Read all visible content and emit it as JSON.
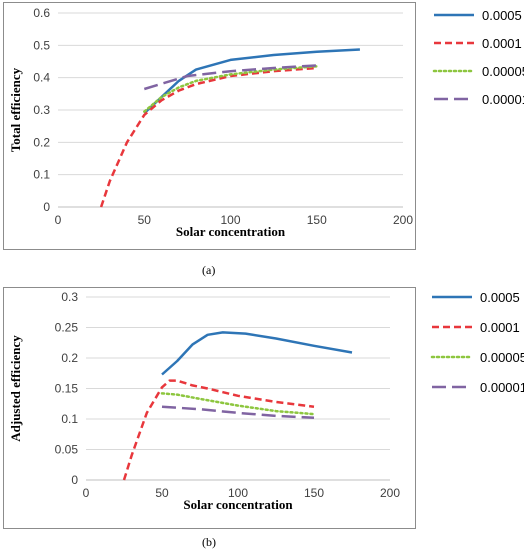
{
  "captions": [
    "(a)",
    "(b)"
  ],
  "chart_data": [
    {
      "type": "line",
      "title": "",
      "xlabel": "Solar concentration",
      "ylabel": "Total efficiency",
      "xlim": [
        0,
        200
      ],
      "ylim": [
        0,
        0.6
      ],
      "xticks": [
        "0",
        "50",
        "100",
        "150",
        "200"
      ],
      "yticks": [
        "0",
        "0.1",
        "0.2",
        "0.3",
        "0.4",
        "0.5",
        "0.6"
      ],
      "grid": "horizontal",
      "legend": "right",
      "series": [
        {
          "name": "0.0005",
          "color": "#2e75b6",
          "dash": "solid",
          "x": [
            50,
            60,
            70,
            80,
            100,
            125,
            150,
            175
          ],
          "y": [
            0.29,
            0.34,
            0.39,
            0.425,
            0.455,
            0.47,
            0.48,
            0.487
          ]
        },
        {
          "name": "0.0001",
          "color": "#e8373c",
          "dash": "dash",
          "x": [
            25,
            30,
            40,
            50,
            60,
            70,
            80,
            100,
            125,
            150
          ],
          "y": [
            0.0,
            0.08,
            0.2,
            0.285,
            0.33,
            0.36,
            0.38,
            0.405,
            0.42,
            0.43
          ]
        },
        {
          "name": "0.00005",
          "color": "#8dc63f",
          "dash": "dot",
          "x": [
            50,
            60,
            70,
            80,
            100,
            125,
            150
          ],
          "y": [
            0.295,
            0.34,
            0.37,
            0.39,
            0.41,
            0.425,
            0.435
          ]
        },
        {
          "name": "0.00001",
          "color": "#8064a2",
          "dash": "longdash",
          "x": [
            50,
            75,
            100,
            125,
            150
          ],
          "y": [
            0.365,
            0.405,
            0.42,
            0.43,
            0.438
          ]
        }
      ]
    },
    {
      "type": "line",
      "title": "",
      "xlabel": "Solar concentration",
      "ylabel": "Adjusted efficiency",
      "xlim": [
        0,
        200
      ],
      "ylim": [
        0,
        0.3
      ],
      "xticks": [
        "0",
        "50",
        "100",
        "150",
        "200"
      ],
      "yticks": [
        "0",
        "0.05",
        "0.1",
        "0.15",
        "0.2",
        "0.25",
        "0.3"
      ],
      "grid": "horizontal",
      "legend": "right",
      "series": [
        {
          "name": "0.0005",
          "color": "#2e75b6",
          "dash": "solid",
          "x": [
            50,
            60,
            70,
            80,
            90,
            105,
            125,
            150,
            175
          ],
          "y": [
            0.173,
            0.195,
            0.222,
            0.238,
            0.242,
            0.24,
            0.232,
            0.22,
            0.209
          ]
        },
        {
          "name": "0.0001",
          "color": "#e8373c",
          "dash": "dash",
          "x": [
            25,
            30,
            40,
            50,
            55,
            60,
            70,
            80,
            100,
            125,
            150
          ],
          "y": [
            0.0,
            0.04,
            0.11,
            0.152,
            0.163,
            0.163,
            0.155,
            0.15,
            0.138,
            0.128,
            0.12
          ]
        },
        {
          "name": "0.00005",
          "color": "#8dc63f",
          "dash": "dot",
          "x": [
            50,
            60,
            75,
            100,
            125,
            150
          ],
          "y": [
            0.142,
            0.14,
            0.133,
            0.122,
            0.113,
            0.108
          ]
        },
        {
          "name": "0.00001",
          "color": "#8064a2",
          "dash": "longdash",
          "x": [
            50,
            75,
            100,
            125,
            150
          ],
          "y": [
            0.12,
            0.116,
            0.11,
            0.105,
            0.102
          ]
        }
      ]
    }
  ]
}
